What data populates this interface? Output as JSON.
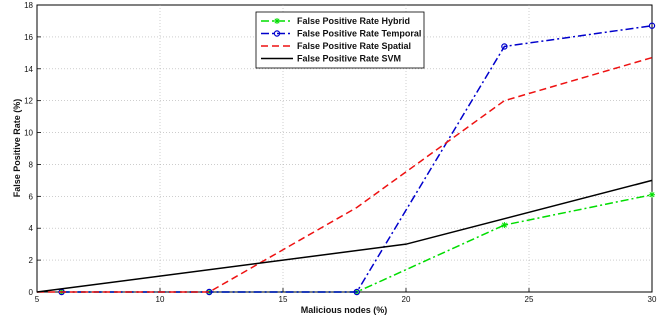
{
  "chart_data": {
    "type": "line",
    "title": "",
    "xlabel": "Malicious nodes (%)",
    "ylabel": "False Positive Rate (%)",
    "xlim": [
      5,
      30
    ],
    "ylim": [
      0,
      18
    ],
    "xticks": [
      5,
      10,
      15,
      20,
      25,
      30
    ],
    "yticks": [
      0,
      2,
      4,
      6,
      8,
      10,
      12,
      14,
      16,
      18
    ],
    "grid": true,
    "legend_position": "top-center",
    "series": [
      {
        "name": "False Positive Rate Hybrid",
        "color": "#00dd00",
        "dash": "dash-dot",
        "marker": "star",
        "x": [
          6,
          12,
          18,
          24,
          30
        ],
        "y": [
          0,
          0,
          0,
          4.2,
          6.1
        ]
      },
      {
        "name": "False Positive Rate Temporal",
        "color": "#0000cc",
        "dash": "dash-dot",
        "marker": "circle",
        "x": [
          6,
          12,
          18,
          24,
          30
        ],
        "y": [
          0,
          0,
          0,
          15.4,
          16.7
        ]
      },
      {
        "name": "False Positive Rate Spatial",
        "color": "#ee1111",
        "dash": "dashed",
        "marker": "none",
        "x": [
          5,
          12,
          18,
          24,
          30
        ],
        "y": [
          0,
          0,
          5.3,
          12.0,
          14.7
        ]
      },
      {
        "name": "False Positive Rate SVM",
        "color": "#000000",
        "dash": "solid",
        "marker": "none",
        "x": [
          5,
          20,
          30
        ],
        "y": [
          0,
          3.0,
          7.0
        ]
      }
    ]
  }
}
